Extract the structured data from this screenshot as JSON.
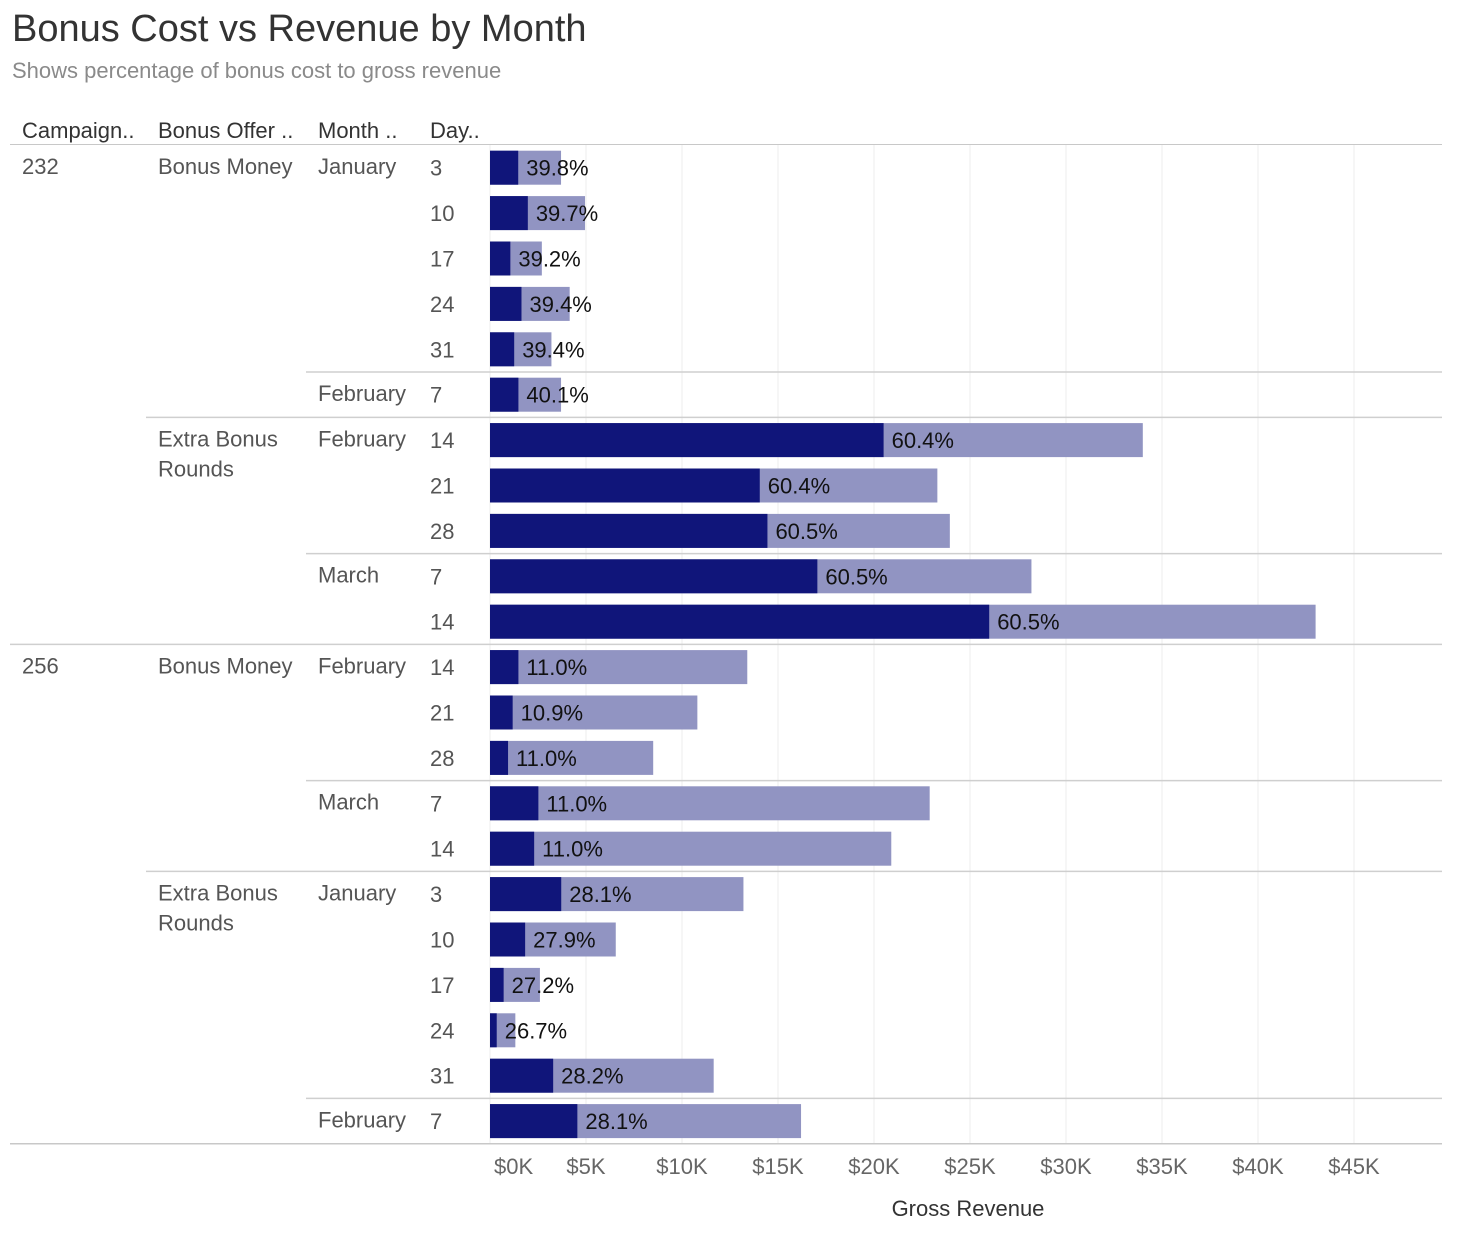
{
  "title": "Bonus Cost vs Revenue by Month",
  "subtitle": "Shows percentage of bonus cost to gross revenue",
  "colors": {
    "bonus_cost": "#10157a",
    "gross_revenue": "#9194c2"
  },
  "chart_data": {
    "type": "bar",
    "orientation": "horizontal",
    "title": "Bonus Cost vs Revenue by Month",
    "subtitle": "Shows percentage of bonus cost to gross revenue",
    "row_headers": [
      "Campaign..",
      "Bonus Offer ..",
      "Month ..",
      "Day.."
    ],
    "xlabel": "Gross Revenue",
    "xlim": [
      0,
      50000
    ],
    "x_ticks": [
      0,
      5000,
      10000,
      15000,
      20000,
      25000,
      30000,
      35000,
      40000,
      45000
    ],
    "x_tick_labels": [
      "$0K",
      "$5K",
      "$10K",
      "$15K",
      "$20K",
      "$25K",
      "$30K",
      "$35K",
      "$40K",
      "$45K"
    ],
    "grid": true,
    "series": [
      {
        "field": "revenue"
      },
      {
        "field": "cost"
      }
    ],
    "rows": [
      {
        "campaign": "232",
        "offer": "Bonus Money",
        "month": "January",
        "day": "3",
        "revenue": 3700,
        "cost": 1470,
        "pct": "39.8%"
      },
      {
        "campaign": "232",
        "offer": "Bonus Money",
        "month": "January",
        "day": "10",
        "revenue": 4950,
        "cost": 1970,
        "pct": "39.7%"
      },
      {
        "campaign": "232",
        "offer": "Bonus Money",
        "month": "January",
        "day": "17",
        "revenue": 2700,
        "cost": 1060,
        "pct": "39.2%"
      },
      {
        "campaign": "232",
        "offer": "Bonus Money",
        "month": "January",
        "day": "24",
        "revenue": 4150,
        "cost": 1640,
        "pct": "39.4%"
      },
      {
        "campaign": "232",
        "offer": "Bonus Money",
        "month": "January",
        "day": "31",
        "revenue": 3200,
        "cost": 1260,
        "pct": "39.4%"
      },
      {
        "campaign": "232",
        "offer": "Bonus Money",
        "month": "February",
        "day": "7",
        "revenue": 3700,
        "cost": 1480,
        "pct": "40.1%"
      },
      {
        "campaign": "232",
        "offer": "Extra Bonus Rounds",
        "month": "February",
        "day": "14",
        "revenue": 34000,
        "cost": 20500,
        "pct": "60.4%"
      },
      {
        "campaign": "232",
        "offer": "Extra Bonus Rounds",
        "month": "February",
        "day": "21",
        "revenue": 23300,
        "cost": 14050,
        "pct": "60.4%"
      },
      {
        "campaign": "232",
        "offer": "Extra Bonus Rounds",
        "month": "February",
        "day": "28",
        "revenue": 23950,
        "cost": 14450,
        "pct": "60.5%"
      },
      {
        "campaign": "232",
        "offer": "Extra Bonus Rounds",
        "month": "March",
        "day": "7",
        "revenue": 28200,
        "cost": 17050,
        "pct": "60.5%"
      },
      {
        "campaign": "232",
        "offer": "Extra Bonus Rounds",
        "month": "March",
        "day": "14",
        "revenue": 43000,
        "cost": 26000,
        "pct": "60.5%"
      },
      {
        "campaign": "256",
        "offer": "Bonus Money",
        "month": "February",
        "day": "14",
        "revenue": 13400,
        "cost": 1480,
        "pct": "11.0%"
      },
      {
        "campaign": "256",
        "offer": "Bonus Money",
        "month": "February",
        "day": "21",
        "revenue": 10800,
        "cost": 1180,
        "pct": "10.9%"
      },
      {
        "campaign": "256",
        "offer": "Bonus Money",
        "month": "February",
        "day": "28",
        "revenue": 8500,
        "cost": 940,
        "pct": "11.0%"
      },
      {
        "campaign": "256",
        "offer": "Bonus Money",
        "month": "March",
        "day": "7",
        "revenue": 22900,
        "cost": 2520,
        "pct": "11.0%"
      },
      {
        "campaign": "256",
        "offer": "Bonus Money",
        "month": "March",
        "day": "14",
        "revenue": 20900,
        "cost": 2300,
        "pct": "11.0%"
      },
      {
        "campaign": "256",
        "offer": "Extra Bonus Rounds",
        "month": "January",
        "day": "3",
        "revenue": 13200,
        "cost": 3710,
        "pct": "28.1%"
      },
      {
        "campaign": "256",
        "offer": "Extra Bonus Rounds",
        "month": "January",
        "day": "10",
        "revenue": 6550,
        "cost": 1830,
        "pct": "27.9%"
      },
      {
        "campaign": "256",
        "offer": "Extra Bonus Rounds",
        "month": "January",
        "day": "17",
        "revenue": 2600,
        "cost": 710,
        "pct": "27.2%"
      },
      {
        "campaign": "256",
        "offer": "Extra Bonus Rounds",
        "month": "January",
        "day": "24",
        "revenue": 1320,
        "cost": 350,
        "pct": "26.7%"
      },
      {
        "campaign": "256",
        "offer": "Extra Bonus Rounds",
        "month": "January",
        "day": "31",
        "revenue": 11650,
        "cost": 3290,
        "pct": "28.2%"
      },
      {
        "campaign": "256",
        "offer": "Extra Bonus Rounds",
        "month": "February",
        "day": "7",
        "revenue": 16200,
        "cost": 4550,
        "pct": "28.1%"
      }
    ]
  }
}
